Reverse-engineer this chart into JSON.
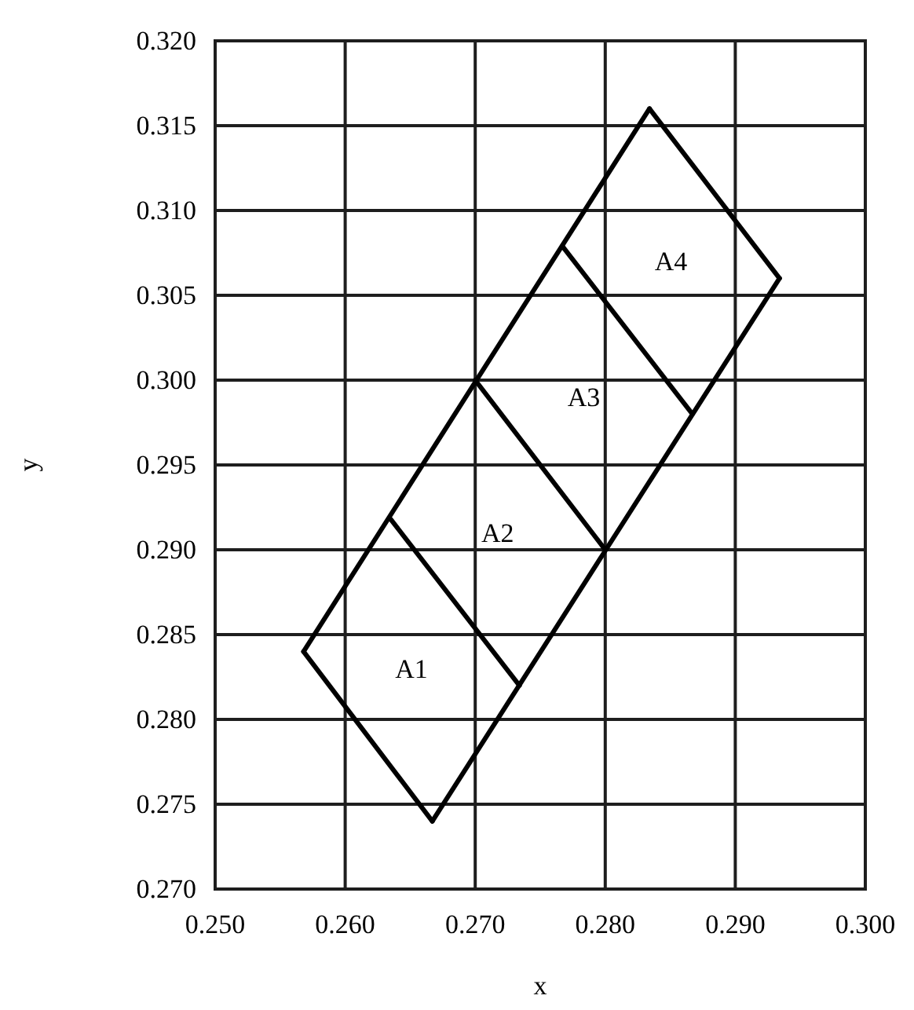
{
  "chart_data": {
    "type": "line",
    "xlabel": "x",
    "ylabel": "y",
    "xlim": [
      0.25,
      0.3
    ],
    "xticks": [
      {
        "value": 0.25,
        "label": "0.250"
      },
      {
        "value": 0.26,
        "label": "0.260"
      },
      {
        "value": 0.27,
        "label": "0.270"
      },
      {
        "value": 0.28,
        "label": "0.280"
      },
      {
        "value": 0.29,
        "label": "0.290"
      },
      {
        "value": 0.3,
        "label": "0.300"
      }
    ],
    "ylim": [
      0.27,
      0.32
    ],
    "yticks": [
      {
        "value": 0.27,
        "label": "0.270"
      },
      {
        "value": 0.275,
        "label": "0.275"
      },
      {
        "value": 0.28,
        "label": "0.280"
      },
      {
        "value": 0.285,
        "label": "0.285"
      },
      {
        "value": 0.29,
        "label": "0.290"
      },
      {
        "value": 0.295,
        "label": "0.295"
      },
      {
        "value": 0.3,
        "label": "0.300"
      },
      {
        "value": 0.305,
        "label": "0.305"
      },
      {
        "value": 0.31,
        "label": "0.310"
      },
      {
        "value": 0.315,
        "label": "0.315"
      },
      {
        "value": 0.32,
        "label": "0.320"
      }
    ],
    "grid": true,
    "marker": "none",
    "line_style": "solid",
    "series": [
      {
        "color": "#000000",
        "x": [
          0.2568,
          0.2667
        ],
        "values": [
          0.284,
          0.274
        ]
      },
      {
        "color": "#000000",
        "x": [
          0.2667,
          0.2934
        ],
        "values": [
          0.274,
          0.306
        ]
      },
      {
        "color": "#000000",
        "x": [
          0.2834,
          0.2934
        ],
        "values": [
          0.316,
          0.306
        ]
      },
      {
        "color": "#000000",
        "x": [
          0.2568,
          0.2834
        ],
        "values": [
          0.284,
          0.316
        ]
      },
      {
        "color": "#000000",
        "x": [
          0.2635,
          0.2734
        ],
        "values": [
          0.2918,
          0.282
        ]
      },
      {
        "color": "#000000",
        "x": [
          0.27,
          0.28
        ],
        "values": [
          0.3,
          0.29
        ]
      },
      {
        "color": "#000000",
        "x": [
          0.2767,
          0.2867
        ],
        "values": [
          0.3079,
          0.298
        ]
      }
    ],
    "annotations": [
      "A1",
      "A2",
      "A3",
      "A4"
    ]
  }
}
